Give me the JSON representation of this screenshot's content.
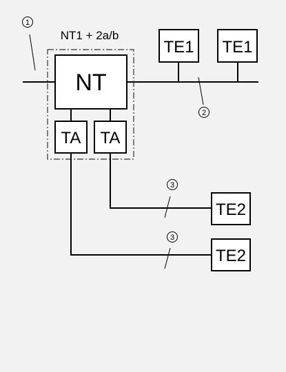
{
  "diagram": {
    "group_label": "NT1 + 2a/b",
    "nt_label": "NT",
    "ta_labels": [
      "TA",
      "TA"
    ],
    "te1_labels": [
      "TE1",
      "TE1"
    ],
    "te2_labels": [
      "TE2",
      "TE2"
    ],
    "markers": [
      "1",
      "2",
      "3",
      "3"
    ]
  }
}
